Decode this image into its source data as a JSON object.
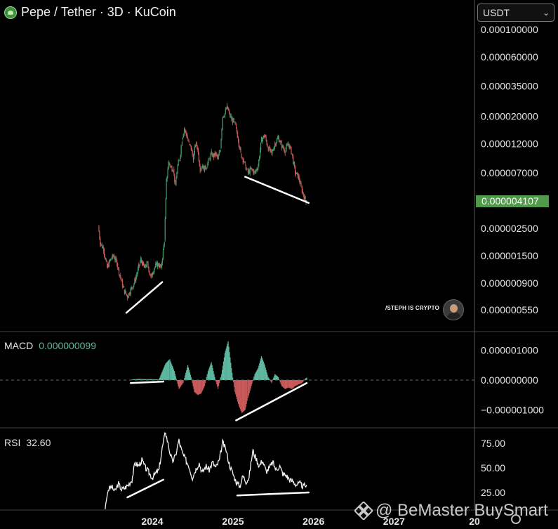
{
  "header": {
    "title": "Pepe / Tether · 3D · KuCoin",
    "coin_icon": "pepe-frog-icon"
  },
  "currency_select": {
    "value": "USDT",
    "icon": "chevron-down-icon"
  },
  "last_price": "0.000004107",
  "macd": {
    "label": "MACD",
    "value": "0.000000099"
  },
  "rsi": {
    "label": "RSI",
    "value": "32.60"
  },
  "watermark": {
    "text": "/STEPH IS CRYPTO"
  },
  "branding": {
    "text": "@ BeMaster BuySmart",
    "icon": "binance-diamond-icon"
  },
  "settings": {
    "icon": "gear-icon"
  },
  "colors": {
    "up": "#3f9e6e",
    "down": "#c85a5a",
    "badge": "#4f9b4a",
    "line": "#ffffff",
    "macd_value": "#67b59b"
  },
  "chart_data": [
    {
      "type": "candlestick",
      "title": "Pepe / Tether · 3D · KuCoin",
      "scale": "log",
      "y_ticks": [
        "0.000100000",
        "0.000060000",
        "0.000035000",
        "0.000020000",
        "0.000012000",
        "0.000007000",
        "0.000002500",
        "0.000001500",
        "0.000000900",
        "0.000000550"
      ],
      "x_ticks": [
        "2024",
        "2025",
        "2026",
        "2027",
        "20"
      ],
      "last_price": 4.107e-06,
      "close_path": [
        [
          "2023-05-01",
          2.6e-06
        ],
        [
          "2023-05-10",
          1.9e-06
        ],
        [
          "2023-05-25",
          1.7e-06
        ],
        [
          "2023-06-10",
          1.2e-06
        ],
        [
          "2023-06-25",
          1.4e-06
        ],
        [
          "2023-07-10",
          1.5e-06
        ],
        [
          "2023-07-25",
          1.3e-06
        ],
        [
          "2023-08-10",
          1e-06
        ],
        [
          "2023-08-25",
          8e-07
        ],
        [
          "2023-09-10",
          7e-07
        ],
        [
          "2023-09-25",
          8e-07
        ],
        [
          "2023-10-10",
          9e-07
        ],
        [
          "2023-10-25",
          1.1e-06
        ],
        [
          "2023-11-10",
          1.4e-06
        ],
        [
          "2023-11-25",
          1.2e-06
        ],
        [
          "2023-12-10",
          1.3e-06
        ],
        [
          "2023-12-25",
          1e-06
        ],
        [
          "2024-01-10",
          1.2e-06
        ],
        [
          "2024-01-25",
          1.3e-06
        ],
        [
          "2024-02-10",
          1.2e-06
        ],
        [
          "2024-02-25",
          2e-06
        ],
        [
          "2024-03-05",
          6e-06
        ],
        [
          "2024-03-15",
          8.5e-06
        ],
        [
          "2024-03-25",
          7.8e-06
        ],
        [
          "2024-04-05",
          7.5e-06
        ],
        [
          "2024-04-15",
          5.5e-06
        ],
        [
          "2024-04-25",
          8e-06
        ],
        [
          "2024-05-05",
          9e-06
        ],
        [
          "2024-05-15",
          1.3e-05
        ],
        [
          "2024-05-25",
          1.6e-05
        ],
        [
          "2024-06-05",
          1.4e-05
        ],
        [
          "2024-06-15",
          1.2e-05
        ],
        [
          "2024-06-25",
          1.1e-05
        ],
        [
          "2024-07-05",
          9e-06
        ],
        [
          "2024-07-15",
          1.2e-05
        ],
        [
          "2024-07-25",
          1.1e-05
        ],
        [
          "2024-08-05",
          7.5e-06
        ],
        [
          "2024-08-15",
          8e-06
        ],
        [
          "2024-08-25",
          7.5e-06
        ],
        [
          "2024-09-05",
          8e-06
        ],
        [
          "2024-09-15",
          9e-06
        ],
        [
          "2024-09-25",
          1e-05
        ],
        [
          "2024-10-05",
          9.5e-06
        ],
        [
          "2024-10-15",
          1e-05
        ],
        [
          "2024-10-25",
          9e-06
        ],
        [
          "2024-11-05",
          1.1e-05
        ],
        [
          "2024-11-15",
          2e-05
        ],
        [
          "2024-11-25",
          2.1e-05
        ],
        [
          "2024-12-05",
          2.4e-05
        ],
        [
          "2024-12-15",
          2.1e-05
        ],
        [
          "2024-12-25",
          1.9e-05
        ],
        [
          "2025-01-05",
          1.8e-05
        ],
        [
          "2025-01-15",
          1.6e-05
        ],
        [
          "2025-01-25",
          1.3e-05
        ],
        [
          "2025-02-05",
          1e-05
        ],
        [
          "2025-02-15",
          9e-06
        ],
        [
          "2025-02-25",
          8e-06
        ],
        [
          "2025-03-10",
          7e-06
        ],
        [
          "2025-03-25",
          7.5e-06
        ],
        [
          "2025-04-10",
          7e-06
        ],
        [
          "2025-04-25",
          8e-06
        ],
        [
          "2025-05-10",
          1.3e-05
        ],
        [
          "2025-05-25",
          1.4e-05
        ],
        [
          "2025-06-10",
          1.1e-05
        ],
        [
          "2025-06-25",
          1e-05
        ],
        [
          "2025-07-10",
          1.2e-05
        ],
        [
          "2025-07-25",
          1.35e-05
        ],
        [
          "2025-08-10",
          1.15e-05
        ],
        [
          "2025-08-25",
          1.05e-05
        ],
        [
          "2025-09-10",
          1.2e-05
        ],
        [
          "2025-09-25",
          1e-05
        ],
        [
          "2025-10-10",
          7e-06
        ],
        [
          "2025-10-25",
          6.5e-06
        ],
        [
          "2025-11-10",
          5e-06
        ],
        [
          "2025-11-25",
          4.2e-06
        ],
        [
          "2025-12-05",
          4.1e-06
        ]
      ],
      "trendlines": [
        [
          [
            "2023-09-05",
            5.2e-07
          ],
          [
            "2024-02-15",
            9.2e-07
          ]
        ],
        [
          [
            "2025-02-25",
            6.5e-06
          ],
          [
            "2025-12-10",
            4e-06
          ]
        ]
      ]
    },
    {
      "type": "histogram",
      "title": "MACD",
      "current": 9.9e-08,
      "y_ticks": [
        "0.000001000",
        "0.000000000",
        "−0.000001000"
      ],
      "ylim": [
        -1.4e-06,
        1.4e-06
      ],
      "bars": [
        [
          "2023-10-01",
          2e-08
        ],
        [
          "2023-11-01",
          4e-08
        ],
        [
          "2023-12-01",
          3e-08
        ],
        [
          "2024-01-01",
          3e-08
        ],
        [
          "2024-02-01",
          2e-08
        ],
        [
          "2024-03-01",
          5.5e-07
        ],
        [
          "2024-03-20",
          7e-07
        ],
        [
          "2024-04-10",
          3e-07
        ],
        [
          "2024-05-01",
          -3e-07
        ],
        [
          "2024-05-20",
          -1e-07
        ],
        [
          "2024-06-10",
          5e-07
        ],
        [
          "2024-06-25",
          1e-07
        ],
        [
          "2024-07-10",
          -4e-07
        ],
        [
          "2024-07-25",
          -5e-07
        ],
        [
          "2024-08-10",
          -4.5e-07
        ],
        [
          "2024-08-25",
          -2e-07
        ],
        [
          "2024-09-10",
          3e-07
        ],
        [
          "2024-09-25",
          6e-07
        ],
        [
          "2024-10-10",
          1e-07
        ],
        [
          "2024-10-25",
          -3e-07
        ],
        [
          "2024-11-10",
          2e-07
        ],
        [
          "2024-11-25",
          9e-07
        ],
        [
          "2024-12-10",
          1.3e-06
        ],
        [
          "2024-12-25",
          4e-07
        ],
        [
          "2025-01-10",
          -4e-07
        ],
        [
          "2025-01-25",
          -8e-07
        ],
        [
          "2025-02-10",
          -1.1e-06
        ],
        [
          "2025-02-25",
          -1e-06
        ],
        [
          "2025-03-10",
          -6e-07
        ],
        [
          "2025-03-25",
          -2e-07
        ],
        [
          "2025-04-10",
          2e-07
        ],
        [
          "2025-04-25",
          4e-07
        ],
        [
          "2025-05-10",
          8e-07
        ],
        [
          "2025-05-25",
          5e-07
        ],
        [
          "2025-06-10",
          1e-07
        ],
        [
          "2025-06-25",
          -1e-07
        ],
        [
          "2025-07-10",
          2e-07
        ],
        [
          "2025-07-25",
          1e-07
        ],
        [
          "2025-08-10",
          -2e-07
        ],
        [
          "2025-08-25",
          -3e-07
        ],
        [
          "2025-09-10",
          -2.5e-07
        ],
        [
          "2025-09-25",
          -3e-07
        ],
        [
          "2025-10-10",
          -2e-07
        ],
        [
          "2025-10-25",
          -1.5e-07
        ],
        [
          "2025-11-10",
          -1e-07
        ],
        [
          "2025-11-25",
          5e-08
        ],
        [
          "2025-12-05",
          9.9e-08
        ]
      ],
      "trendlines": [
        [
          [
            "2023-09-25",
            -1e-07
          ],
          [
            "2024-02-20",
            -5e-08
          ]
        ],
        [
          [
            "2025-01-15",
            -1.35e-06
          ],
          [
            "2025-12-01",
            -1e-07
          ]
        ]
      ]
    },
    {
      "type": "line",
      "title": "RSI",
      "current": 32.6,
      "y_ticks": [
        "75.00",
        "50.00",
        "25.00"
      ],
      "ylim": [
        5,
        90
      ],
      "values": [
        [
          "2023-06-01",
          8
        ],
        [
          "2023-06-15",
          28
        ],
        [
          "2023-07-01",
          31
        ],
        [
          "2023-07-15",
          26
        ],
        [
          "2023-08-01",
          34
        ],
        [
          "2023-08-15",
          28
        ],
        [
          "2023-09-01",
          30
        ],
        [
          "2023-09-15",
          33
        ],
        [
          "2023-10-01",
          38
        ],
        [
          "2023-10-15",
          55
        ],
        [
          "2023-11-01",
          52
        ],
        [
          "2023-11-15",
          58
        ],
        [
          "2023-12-01",
          50
        ],
        [
          "2023-12-15",
          46
        ],
        [
          "2024-01-01",
          40
        ],
        [
          "2024-01-15",
          44
        ],
        [
          "2024-02-01",
          48
        ],
        [
          "2024-02-15",
          70
        ],
        [
          "2024-03-01",
          87
        ],
        [
          "2024-03-15",
          72
        ],
        [
          "2024-04-01",
          56
        ],
        [
          "2024-04-15",
          62
        ],
        [
          "2024-05-01",
          78
        ],
        [
          "2024-05-15",
          66
        ],
        [
          "2024-06-01",
          58
        ],
        [
          "2024-06-15",
          52
        ],
        [
          "2024-07-01",
          40
        ],
        [
          "2024-07-15",
          48
        ],
        [
          "2024-08-01",
          55
        ],
        [
          "2024-08-15",
          45
        ],
        [
          "2024-09-01",
          52
        ],
        [
          "2024-09-15",
          48
        ],
        [
          "2024-10-01",
          56
        ],
        [
          "2024-10-15",
          50
        ],
        [
          "2024-11-01",
          58
        ],
        [
          "2024-11-15",
          76
        ],
        [
          "2024-12-01",
          68
        ],
        [
          "2024-12-15",
          54
        ],
        [
          "2025-01-01",
          44
        ],
        [
          "2025-01-15",
          36
        ],
        [
          "2025-02-01",
          31
        ],
        [
          "2025-02-15",
          42
        ],
        [
          "2025-03-01",
          36
        ],
        [
          "2025-03-15",
          40
        ],
        [
          "2025-04-01",
          68
        ],
        [
          "2025-04-15",
          60
        ],
        [
          "2025-05-01",
          52
        ],
        [
          "2025-05-15",
          58
        ],
        [
          "2025-06-01",
          46
        ],
        [
          "2025-06-15",
          50
        ],
        [
          "2025-07-01",
          56
        ],
        [
          "2025-07-15",
          48
        ],
        [
          "2025-08-01",
          52
        ],
        [
          "2025-08-15",
          44
        ],
        [
          "2025-09-01",
          42
        ],
        [
          "2025-09-15",
          38
        ],
        [
          "2025-10-01",
          36
        ],
        [
          "2025-10-15",
          33
        ],
        [
          "2025-11-01",
          34
        ],
        [
          "2025-11-15",
          31
        ],
        [
          "2025-12-01",
          32.6
        ]
      ],
      "trendlines": [
        [
          [
            "2023-09-10",
            20
          ],
          [
            "2024-02-20",
            38
          ]
        ],
        [
          [
            "2025-01-20",
            22
          ],
          [
            "2025-12-10",
            25
          ]
        ]
      ]
    }
  ]
}
